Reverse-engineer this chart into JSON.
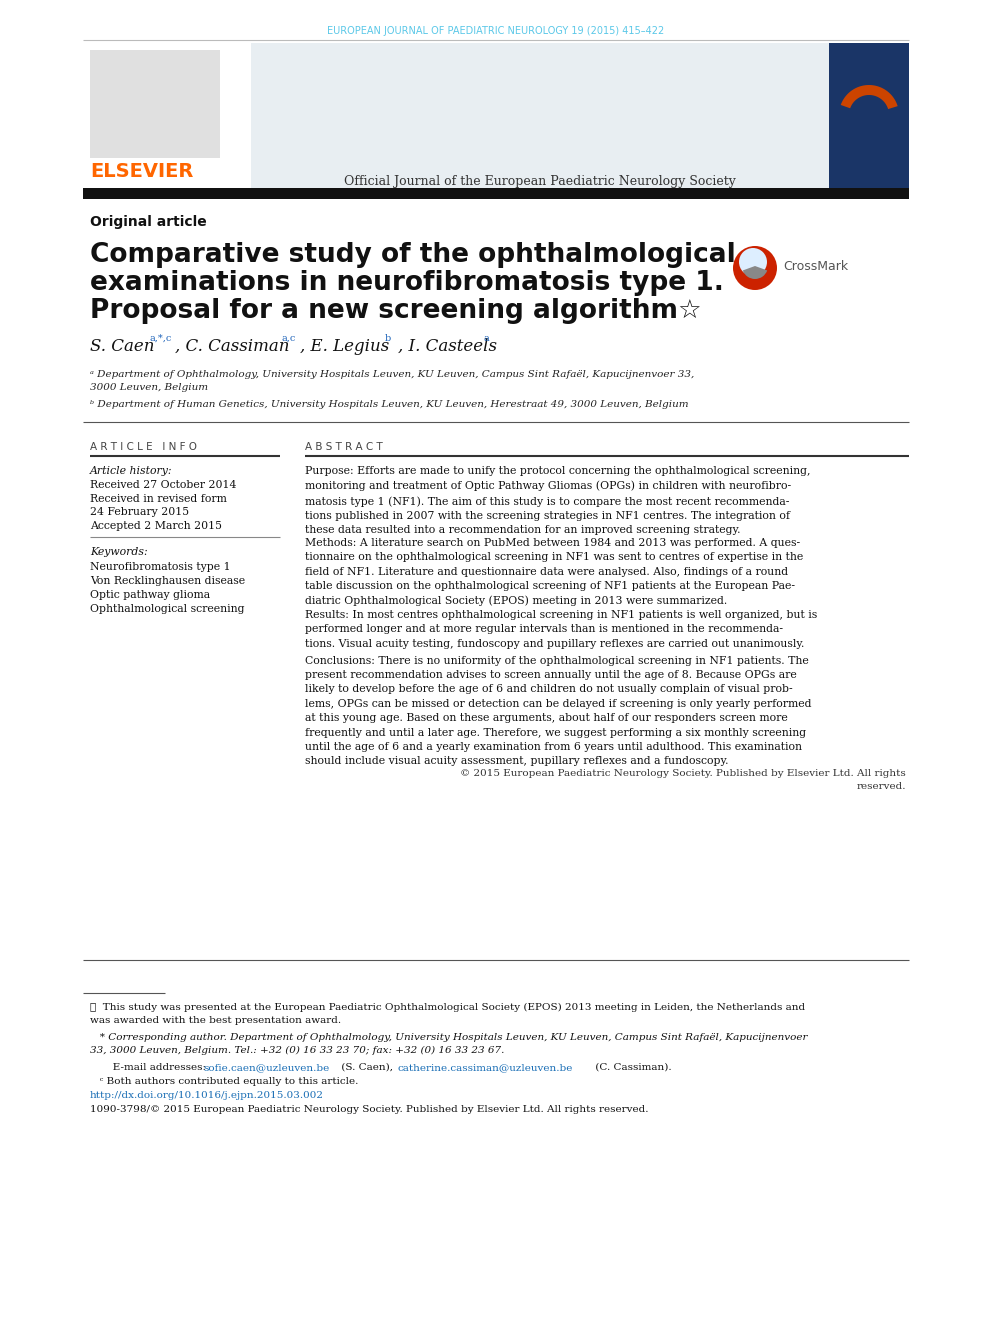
{
  "journal_header": "EUROPEAN JOURNAL OF PAEDIATRIC NEUROLOGY 19 (2015) 415–422",
  "journal_header_color": "#5bc8e8",
  "elsevier_color": "#ff6600",
  "elsevier_text": "ELSEVIER",
  "official_journal_text": "Official Journal of the European Paediatric Neurology Society",
  "article_type": "Original article",
  "title_line1": "Comparative study of the ophthalmological",
  "title_line2": "examinations in neurofibromatosis type 1.",
  "title_line3": "Proposal for a new screening algorithm☆",
  "authors_line": "S. Caen",
  "affil_a": "ᵃ Department of Ophthalmology, University Hospitals Leuven, KU Leuven, Campus Sint Rafaël, Kapucijnenvoer 33,\n3000 Leuven, Belgium",
  "affil_b": "ᵇ Department of Human Genetics, University Hospitals Leuven, KU Leuven, Herestraat 49, 3000 Leuven, Belgium",
  "article_info_header": "A R T I C L E   I N F O",
  "article_history_label": "Article history:",
  "received1": "Received 27 October 2014",
  "received2a": "Received in revised form",
  "received2b": "24 February 2015",
  "accepted": "Accepted 2 March 2015",
  "keywords_label": "Keywords:",
  "keyword1": "Neurofibromatosis type 1",
  "keyword2": "Von Recklinghausen disease",
  "keyword3": "Optic pathway glioma",
  "keyword4": "Ophthalmological screening",
  "abstract_header": "A B S T R A C T",
  "abstract_purpose": "Purpose: Efforts are made to unify the protocol concerning the ophthalmological screening,\nmonitoring and treatment of Optic Pathway Gliomas (OPGs) in children with neurofibro-\nmatosis type 1 (NF1). The aim of this study is to compare the most recent recommenda-\ntions published in 2007 with the screening strategies in NF1 centres. The integration of\nthese data resulted into a recommendation for an improved screening strategy.",
  "abstract_methods": "Methods: A literature search on PubMed between 1984 and 2013 was performed. A ques-\ntionnaire on the ophthalmological screening in NF1 was sent to centres of expertise in the\nfield of NF1. Literature and questionnaire data were analysed. Also, findings of a round\ntable discussion on the ophthalmological screening of NF1 patients at the European Pae-\ndiatric Ophthalmological Society (EPOS) meeting in 2013 were summarized.",
  "abstract_results": "Results: In most centres ophthalmological screening in NF1 patients is well organized, but is\nperformed longer and at more regular intervals than is mentioned in the recommenda-\ntions. Visual acuity testing, fundoscopy and pupillary reflexes are carried out unanimously.",
  "abstract_conclusions": "Conclusions: There is no uniformity of the ophthalmological screening in NF1 patients. The\npresent recommendation advises to screen annually until the age of 8. Because OPGs are\nlikely to develop before the age of 6 and children do not usually complain of visual prob-\nlems, OPGs can be missed or detection can be delayed if screening is only yearly performed\nat this young age. Based on these arguments, about half of our responders screen more\nfrequently and until a later age. Therefore, we suggest performing a six monthly screening\nuntil the age of 6 and a yearly examination from 6 years until adulthood. This examination\nshould include visual acuity assessment, pupillary reflexes and a fundoscopy.",
  "abstract_copyright1": "© 2015 European Paediatric Neurology Society. Published by Elsevier Ltd. All rights",
  "abstract_copyright2": "reserved.",
  "footnote_star_line1": "★  This study was presented at the European Paediatric Ophthalmological Society (EPOS) 2013 meeting in Leiden, the Netherlands and",
  "footnote_star_line2": "was awarded with the best presentation award.",
  "footnote_corr_line1": "   * Corresponding author. Department of Ophthalmology, University Hospitals Leuven, KU Leuven, Campus Sint Rafaël, Kapucijnenvoer",
  "footnote_corr_line2": "33, 3000 Leuven, Belgium. Tel.: +32 (0) 16 33 23 70; fax: +32 (0) 16 33 23 67.",
  "footnote_email_prefix": "       E-mail addresses: ",
  "footnote_email1": "sofie.caen@uzleuven.be",
  "footnote_email_mid": " (S. Caen), ",
  "footnote_email2": "catherine.cassiman@uzleuven.be",
  "footnote_email_suffix": " (C. Cassiman).",
  "footnote_c": "   ᶜ Both authors contributed equally to this article.",
  "footnote_doi": "http://dx.doi.org/10.1016/j.ejpn.2015.03.002",
  "footnote_issn": "1090-3798/© 2015 European Paediatric Neurology Society. Published by Elsevier Ltd. All rights reserved.",
  "bg_color": "#ffffff",
  "text_color": "#111111",
  "link_color": "#1a6eb5"
}
